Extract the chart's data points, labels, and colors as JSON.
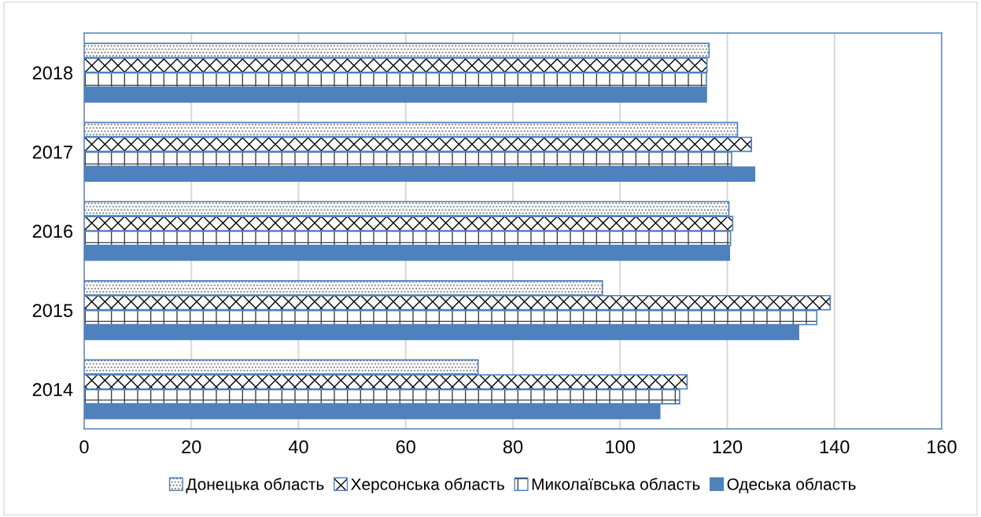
{
  "chart_data": {
    "type": "bar",
    "orientation": "horizontal",
    "categories": [
      "2018",
      "2017",
      "2016",
      "2015",
      "2014"
    ],
    "series": [
      {
        "name": "Донецька область",
        "color": "#4f81bd",
        "values": [
          116.6,
          121.9,
          120.3,
          96.7,
          73.5
        ]
      },
      {
        "name": "Херсонська область",
        "color": "#4f81bd",
        "values": [
          116.2,
          124.5,
          121.0,
          139.2,
          112.5
        ]
      },
      {
        "name": "Миколаївська область",
        "color": "#4f81bd",
        "values": [
          116.1,
          120.8,
          120.6,
          136.7,
          111.1
        ]
      },
      {
        "name": "Одеська область",
        "color": "#4f81bd",
        "values": [
          116.1,
          125.1,
          120.4,
          133.3,
          107.4
        ]
      }
    ],
    "xlim": [
      0,
      160
    ],
    "xticks": [
      0,
      20,
      40,
      60,
      80,
      100,
      120,
      140,
      160
    ],
    "grid": "x",
    "legend": "bottom"
  }
}
